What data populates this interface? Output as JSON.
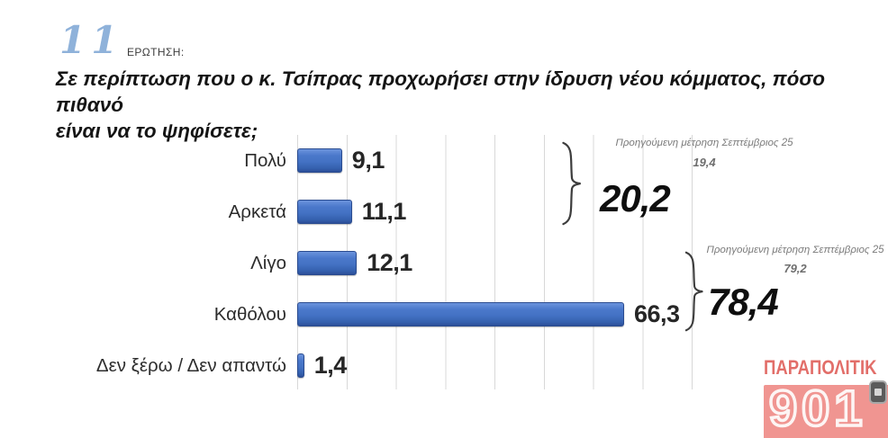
{
  "header": {
    "logo_number": "11",
    "question_label": "ΕΡΩΤΗΣΗ:",
    "title": "Σε περίπτωση που ο κ. Τσίπρας προχωρήσει στην ίδρυση νέου κόμματος, πόσο πιθανό είναι να το ψηφίσετε;",
    "title_lines": [
      "Σε περίπτωση που ο κ. Τσίπρας προχωρήσει στην ίδρυση νέου κόμματος, πόσο πιθανό",
      "είναι να το ψηφίσετε;"
    ]
  },
  "chart_data": {
    "type": "bar",
    "orientation": "horizontal",
    "title": "Σε περίπτωση που ο κ. Τσίπρας προχωρήσει στην ίδρυση νέου κόμματος, πόσο πιθανό είναι να το ψηφίσετε;",
    "categories": [
      "Πολύ",
      "Αρκετά",
      "Λίγο",
      "Καθόλου",
      "Δεν ξέρω / Δεν απαντώ"
    ],
    "values": [
      9.1,
      11.1,
      12.1,
      66.3,
      1.4
    ],
    "value_labels": [
      "9,1",
      "11,1",
      "12,1",
      "66,3",
      "1,4"
    ],
    "xlim": [
      0,
      80
    ],
    "gridline_step": 10,
    "grid": true,
    "legend": false,
    "bar_color": "#4472c4",
    "annotations": [
      {
        "group": "Πολύ + Αρκετά",
        "previous_label": "Προηγούμενη μέτρηση Σεπτέμβριος 25",
        "previous_value": "19,4",
        "total": "20,2"
      },
      {
        "group": "Λίγο + Καθόλου",
        "previous_label": "Προηγούμενη μέτρηση Σεπτέμβριος 25",
        "previous_value": "79,2",
        "total": "78,4"
      }
    ]
  },
  "watermark": {
    "brand": "ΠΑΡΑΠΟΛΙΤΙΚ",
    "station_number": "901",
    "brand_color": "#dd5550",
    "block_color": "#ee837e"
  }
}
